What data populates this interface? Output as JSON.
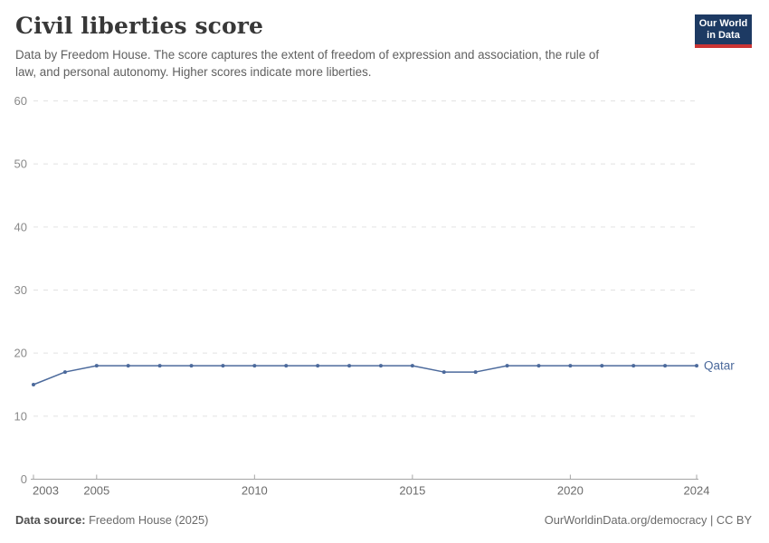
{
  "header": {
    "title": "Civil liberties score",
    "subtitle": "Data by Freedom House. The score captures the extent of freedom of expression and association, the rule of law, and personal autonomy. Higher scores indicate more liberties."
  },
  "logo": {
    "line1": "Our World",
    "line2": "in Data",
    "bg_color": "#1d3a63",
    "accent_color": "#cb3434"
  },
  "chart_data": {
    "type": "line",
    "title": "Civil liberties score",
    "x": [
      2003,
      2004,
      2005,
      2006,
      2007,
      2008,
      2009,
      2010,
      2011,
      2012,
      2013,
      2014,
      2015,
      2016,
      2017,
      2018,
      2019,
      2020,
      2021,
      2022,
      2023,
      2024
    ],
    "series": [
      {
        "name": "Qatar",
        "color": "#4c6a9c",
        "values": [
          15,
          17,
          18,
          18,
          18,
          18,
          18,
          18,
          18,
          18,
          18,
          18,
          18,
          17,
          17,
          18,
          18,
          18,
          18,
          18,
          18,
          18
        ]
      }
    ],
    "xlabel": "",
    "ylabel": "",
    "ylim": [
      0,
      60
    ],
    "yticks": [
      0,
      10,
      20,
      30,
      40,
      50,
      60
    ],
    "xticks": [
      2003,
      2005,
      2010,
      2015,
      2020,
      2024
    ],
    "grid": true,
    "legend_position": "end-of-line",
    "colors": {
      "grid": "#e2e2e2",
      "axis": "#a5a5a5",
      "ytick_label": "#8a8a8a",
      "xtick_label": "#6b6b6b"
    }
  },
  "footer": {
    "source_label": "Data source:",
    "source_value": "Freedom House (2025)",
    "credit": "OurWorldinData.org/democracy | CC BY"
  }
}
